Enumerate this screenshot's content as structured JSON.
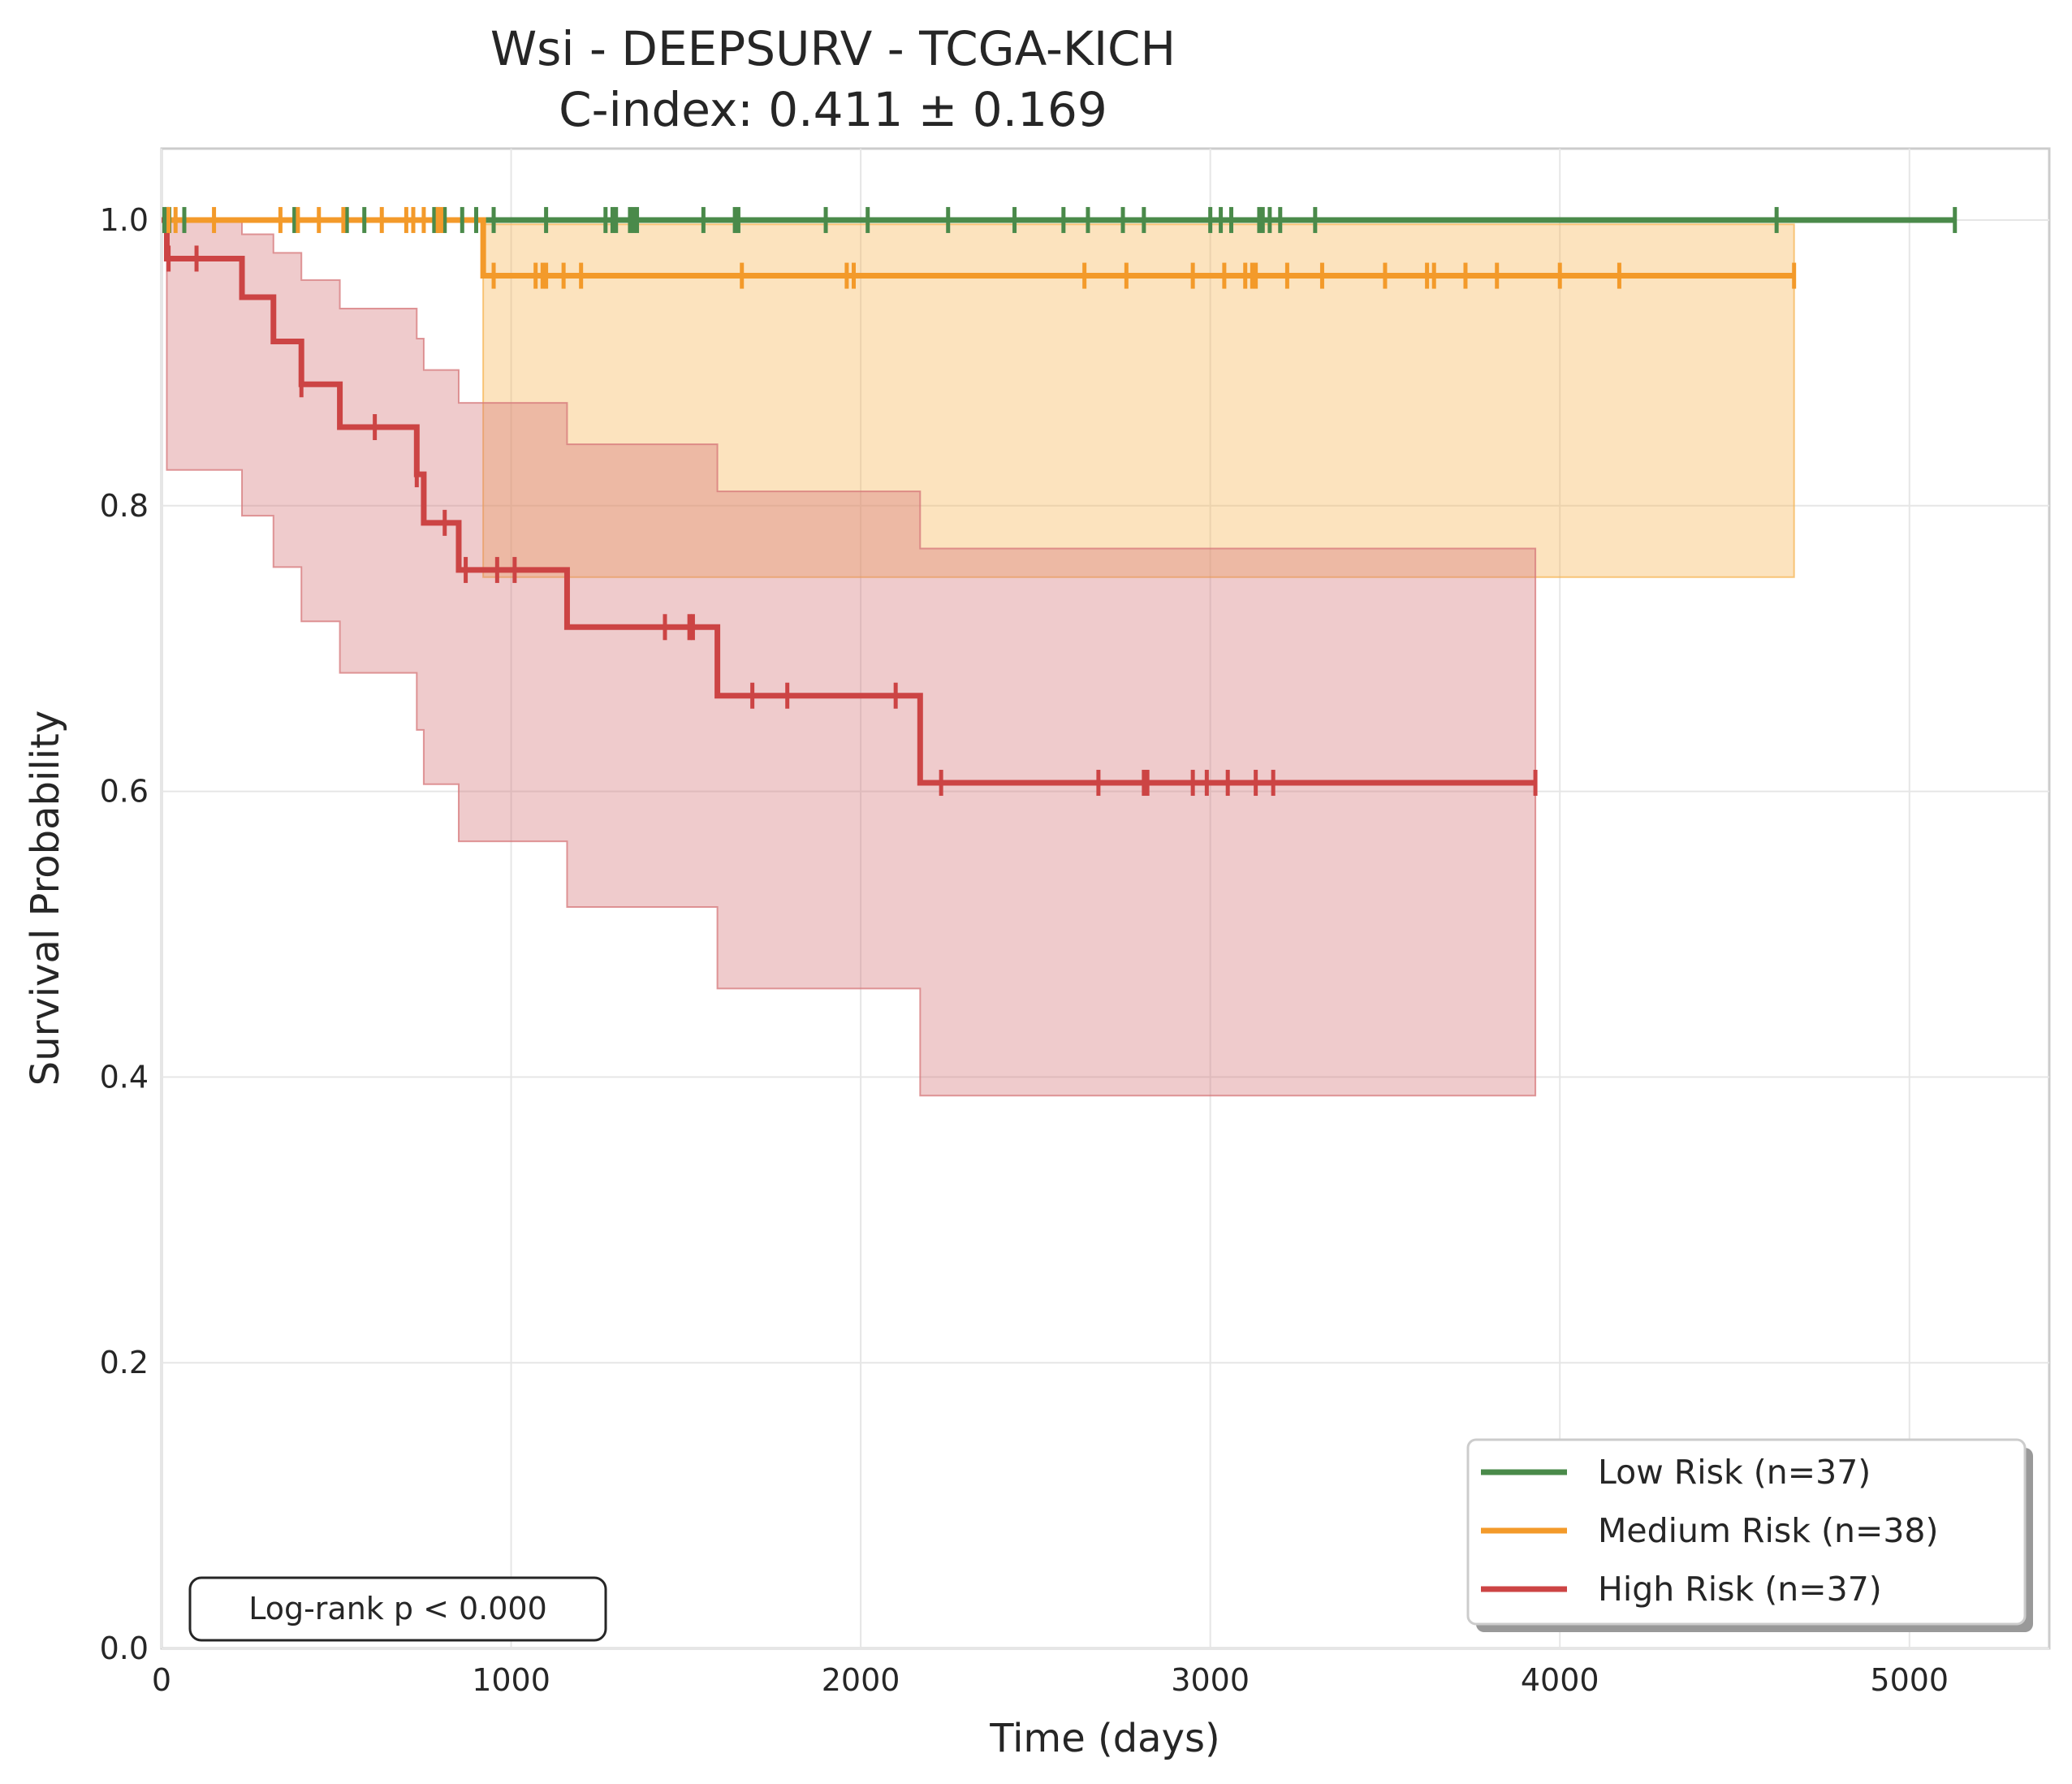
{
  "chart_data": {
    "type": "line",
    "title": "Wsi - DEEPSURV - TCGA-KICH",
    "subtitle": "C-index: 0.411 ± 0.169",
    "xlabel": "Time (days)",
    "ylabel": "Survival Probability",
    "xlim": [
      0,
      5400
    ],
    "ylim": [
      0,
      1.05
    ],
    "xticks": [
      0,
      1000,
      2000,
      3000,
      4000,
      5000
    ],
    "xtick_labels": [
      "0",
      "1000",
      "2000",
      "3000",
      "4000",
      "5000"
    ],
    "yticks": [
      0.0,
      0.2,
      0.4,
      0.6,
      0.8,
      1.0
    ],
    "ytick_labels": [
      "0.0",
      "0.2",
      "0.4",
      "0.6",
      "0.8",
      "1.0"
    ],
    "grid": true,
    "legend_position": "bottom-right",
    "annotation": "Log-rank p < 0.000",
    "series": [
      {
        "name": "Low Risk (n=37)",
        "color": "#4a8a4a",
        "band_color": "#4a8a4a",
        "steps": [
          [
            0,
            1.0
          ],
          [
            5130,
            1.0
          ]
        ],
        "ci": [],
        "censors": [
          8,
          15,
          22,
          65,
          380,
          530,
          580,
          780,
          790,
          810,
          860,
          900,
          950,
          1100,
          1270,
          1290,
          1300,
          1340,
          1350,
          1360,
          1550,
          1640,
          1650,
          1900,
          2020,
          2250,
          2440,
          2580,
          2650,
          2750,
          2810,
          3000,
          3030,
          3060,
          3140,
          3150,
          3170,
          3200,
          3300,
          4620,
          5130
        ]
      },
      {
        "name": "Medium Risk (n=38)",
        "color": "#f39a2a",
        "band_color": "#f6b655",
        "steps": [
          [
            0,
            1.0
          ],
          [
            920,
            0.961
          ],
          [
            4670,
            0.961
          ]
        ],
        "ci": [
          [
            920,
            0.75,
            0.997
          ],
          [
            4670,
            0.75,
            0.997
          ]
        ],
        "censors": [
          20,
          40,
          150,
          340,
          390,
          450,
          520,
          630,
          700,
          720,
          750,
          790,
          800,
          950,
          1070,
          1090,
          1100,
          1150,
          1200,
          1660,
          1960,
          1980,
          2640,
          2760,
          2950,
          3040,
          3100,
          3120,
          3130,
          3220,
          3320,
          3500,
          3620,
          3640,
          3730,
          3820,
          4000,
          4170,
          4670
        ]
      },
      {
        "name": "High Risk (n=37)",
        "color": "#cc4444",
        "band_color": "#d6777a",
        "steps": [
          [
            0,
            1.0
          ],
          [
            15,
            0.973
          ],
          [
            230,
            0.946
          ],
          [
            320,
            0.915
          ],
          [
            400,
            0.885
          ],
          [
            510,
            0.855
          ],
          [
            730,
            0.822
          ],
          [
            750,
            0.788
          ],
          [
            850,
            0.755
          ],
          [
            1160,
            0.715
          ],
          [
            1590,
            0.667
          ],
          [
            2170,
            0.606
          ],
          [
            3930,
            0.606
          ]
        ],
        "ci": [
          [
            15,
            0.825,
            1.0
          ],
          [
            230,
            0.793,
            0.99
          ],
          [
            320,
            0.757,
            0.977
          ],
          [
            400,
            0.719,
            0.958
          ],
          [
            510,
            0.683,
            0.938
          ],
          [
            730,
            0.643,
            0.917
          ],
          [
            750,
            0.605,
            0.895
          ],
          [
            850,
            0.565,
            0.872
          ],
          [
            1160,
            0.519,
            0.843
          ],
          [
            1590,
            0.462,
            0.81
          ],
          [
            2170,
            0.387,
            0.77
          ],
          [
            3930,
            0.387,
            0.77
          ]
        ],
        "censors": [
          20,
          100,
          400,
          610,
          730,
          810,
          870,
          960,
          1010,
          1440,
          1510,
          1520,
          1690,
          1790,
          2100,
          2230,
          2680,
          2810,
          2820,
          2950,
          2990,
          3050,
          3130,
          3180,
          3930
        ]
      }
    ]
  }
}
